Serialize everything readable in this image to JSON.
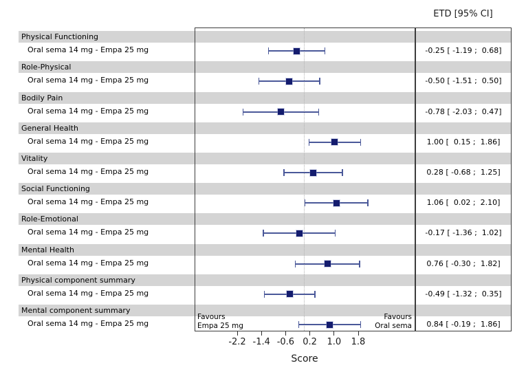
{
  "header": {
    "col_header": "ETD [95% CI]"
  },
  "chart_data": {
    "type": "forest",
    "xlabel": "Score",
    "x_ticks": [
      -2.2,
      -1.4,
      -0.6,
      0.2,
      1.0,
      1.8
    ],
    "x_tick_labels": [
      "-2.2",
      "-1.4",
      "-0.6",
      "0.2",
      "1.0",
      "1.8"
    ],
    "x_range": [
      -3.6,
      3.65
    ],
    "ref_line": 0,
    "grid": false,
    "comparison_label": "Oral sema 14 mg - Empa 25 mg",
    "favours_left": "Favours\nEmpa 25 mg",
    "favours_right": "Favours\nOral sema",
    "rows": [
      {
        "category": "Physical Functioning",
        "estimate": -0.25,
        "ci_low": -1.19,
        "ci_high": 0.68,
        "display": "-0.25 [ -1.19 ;  0.68]"
      },
      {
        "category": "Role-Physical",
        "estimate": -0.5,
        "ci_low": -1.51,
        "ci_high": 0.5,
        "display": "-0.50 [ -1.51 ;  0.50]"
      },
      {
        "category": "Bodily Pain",
        "estimate": -0.78,
        "ci_low": -2.03,
        "ci_high": 0.47,
        "display": "-0.78 [ -2.03 ;  0.47]"
      },
      {
        "category": "General Health",
        "estimate": 1.0,
        "ci_low": 0.15,
        "ci_high": 1.86,
        "display": "1.00 [  0.15 ;  1.86]"
      },
      {
        "category": "Vitality",
        "estimate": 0.28,
        "ci_low": -0.68,
        "ci_high": 1.25,
        "display": "0.28 [ -0.68 ;  1.25]"
      },
      {
        "category": "Social Functioning",
        "estimate": 1.06,
        "ci_low": 0.02,
        "ci_high": 2.1,
        "display": "1.06 [  0.02 ;  2.10]"
      },
      {
        "category": "Role-Emotional",
        "estimate": -0.17,
        "ci_low": -1.36,
        "ci_high": 1.02,
        "display": "-0.17 [ -1.36 ;  1.02]"
      },
      {
        "category": "Mental Health",
        "estimate": 0.76,
        "ci_low": -0.3,
        "ci_high": 1.82,
        "display": "0.76 [ -0.30 ;  1.82]"
      },
      {
        "category": "Physical component summary",
        "estimate": -0.49,
        "ci_low": -1.32,
        "ci_high": 0.35,
        "display": "-0.49 [ -1.32 ;  0.35]"
      },
      {
        "category": "Mental component summary",
        "estimate": 0.84,
        "ci_low": -0.19,
        "ci_high": 1.86,
        "display": "0.84 [ -0.19 ;  1.86]"
      }
    ]
  },
  "colors": {
    "marker": "#141c6e",
    "ci_line": "#4a5899",
    "band": "#d4d4d4",
    "box_border": "#3c3c3c",
    "ref_line": "#b2b2b2"
  }
}
